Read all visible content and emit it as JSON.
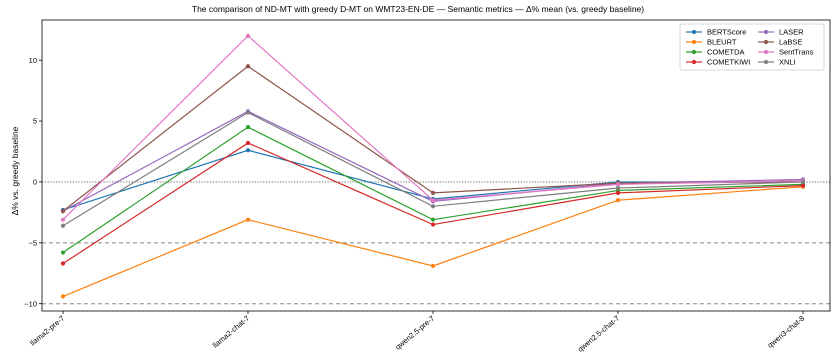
{
  "chart_data": {
    "type": "line",
    "title": "The comparison of ND-MT with greedy D-MT on WMT23-EN-DE — Semantic metrics — Δ% mean (vs. greedy baseline)",
    "ylabel": "Δ% vs. greedy baseline",
    "xlabel": "",
    "categories": [
      "llama2-pre-7",
      "llama2-chat-7",
      "qwen2.5-pre-7",
      "qwen2.5-chat-7",
      "qwen3-chat-8"
    ],
    "ylim": [
      -10.6,
      13.3
    ],
    "yticks": [
      -10,
      -5,
      0,
      5,
      10
    ],
    "reference_lines": [
      0,
      -5,
      -10
    ],
    "legend_position": "top-right",
    "grid": false,
    "series": [
      {
        "name": "BERTScore",
        "color": "#1f77b4",
        "values": [
          -2.3,
          2.6,
          -1.4,
          0.0,
          0.0
        ]
      },
      {
        "name": "BLEURT",
        "color": "#ff7f0e",
        "values": [
          -9.4,
          -3.1,
          -6.9,
          -1.5,
          -0.4
        ]
      },
      {
        "name": "COMETDA",
        "color": "#2ca02c",
        "values": [
          -5.8,
          4.5,
          -3.1,
          -0.7,
          -0.2
        ]
      },
      {
        "name": "COMETKIWI",
        "color": "#d62728",
        "values": [
          -6.7,
          3.2,
          -3.5,
          -0.9,
          -0.3
        ]
      },
      {
        "name": "LASER",
        "color": "#9467bd",
        "values": [
          -2.4,
          5.8,
          -1.6,
          -0.1,
          0.2
        ]
      },
      {
        "name": "LaBSE",
        "color": "#8c564b",
        "values": [
          -2.4,
          9.5,
          -0.9,
          -0.1,
          0.0
        ]
      },
      {
        "name": "SentTrans",
        "color": "#e377c2",
        "values": [
          -3.1,
          12.0,
          -1.5,
          -0.2,
          0.1
        ]
      },
      {
        "name": "XNLI",
        "color": "#7f7f7f",
        "values": [
          -3.6,
          5.7,
          -2.0,
          -0.5,
          0.0
        ]
      }
    ]
  }
}
